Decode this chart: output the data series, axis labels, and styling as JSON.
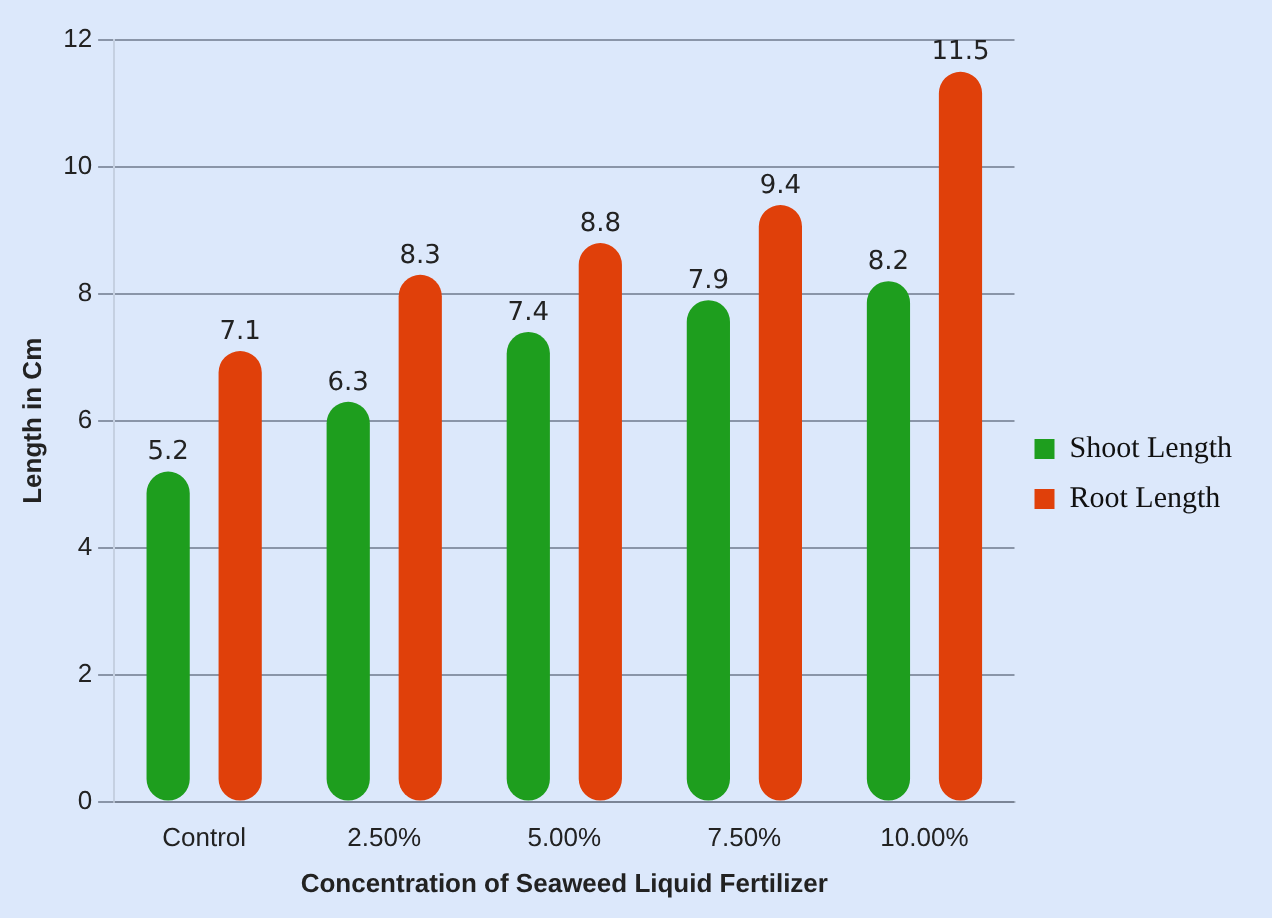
{
  "chart_data": {
    "type": "bar",
    "xlabel": "Concentration of Seaweed Liquid Fertilizer",
    "ylabel": "Length in Cm",
    "categories": [
      "Control",
      "2.50%",
      "5.00%",
      "7.50%",
      "10.00%"
    ],
    "series": [
      {
        "name": "Shoot Length",
        "color": "#1e9e1e",
        "values": [
          5.2,
          6.3,
          7.4,
          7.9,
          8.2
        ]
      },
      {
        "name": "Root Length",
        "color": "#e0400a",
        "values": [
          7.1,
          8.3,
          8.8,
          9.4,
          11.5
        ]
      }
    ],
    "ylim": [
      0,
      12
    ],
    "yticks": [
      0,
      2,
      4,
      6,
      8,
      10,
      12
    ],
    "grid": "y",
    "legend": "right",
    "data_labels": true
  }
}
